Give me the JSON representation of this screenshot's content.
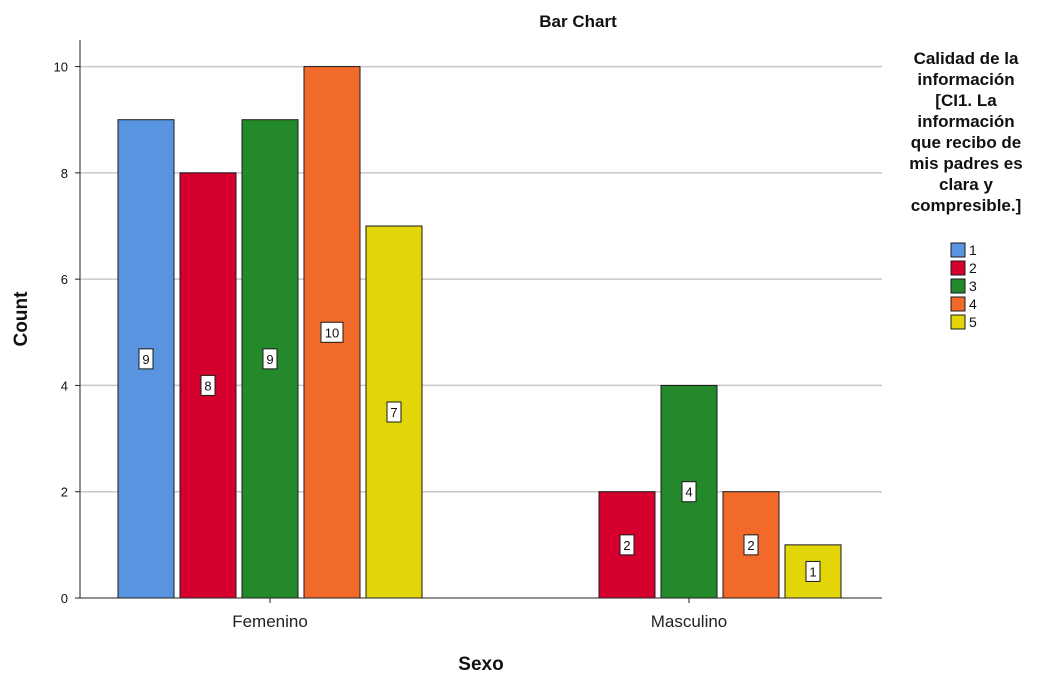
{
  "chart_data": {
    "type": "bar",
    "title": "Bar Chart",
    "xlabel": "Sexo",
    "ylabel": "Count",
    "categories": [
      "Femenino",
      "Masculino"
    ],
    "ylim": [
      0,
      10.5
    ],
    "yticks": [
      0,
      2,
      4,
      6,
      8,
      10
    ],
    "grid": "horizontal",
    "legend": {
      "placement": "right",
      "title_lines": [
        "Calidad de la",
        "información",
        "[CI1. La",
        "información",
        "que recibo de",
        "mis padres es",
        "clara y",
        "compresible.]"
      ]
    },
    "series": [
      {
        "name": "1",
        "color": "#5894e0",
        "values": [
          9,
          0
        ]
      },
      {
        "name": "2",
        "color": "#d6002f",
        "values": [
          8,
          2
        ]
      },
      {
        "name": "3",
        "color": "#24892b",
        "values": [
          9,
          4
        ]
      },
      {
        "name": "4",
        "color": "#f16a2a",
        "values": [
          10,
          2
        ]
      },
      {
        "name": "5",
        "color": "#e2d608",
        "values": [
          7,
          1
        ]
      }
    ]
  }
}
